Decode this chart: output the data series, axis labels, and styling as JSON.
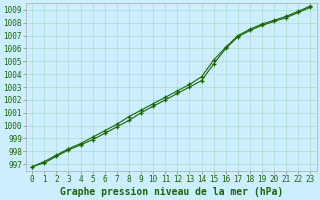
{
  "title": "Graphe pression niveau de la mer (hPa)",
  "x_labels": [
    0,
    1,
    2,
    3,
    4,
    5,
    6,
    7,
    8,
    9,
    10,
    11,
    12,
    13,
    14,
    15,
    16,
    17,
    18,
    19,
    20,
    21,
    22,
    23
  ],
  "xlim": [
    -0.5,
    23.5
  ],
  "ylim": [
    996.5,
    1009.5
  ],
  "yticks": [
    997,
    998,
    999,
    1000,
    1001,
    1002,
    1003,
    1004,
    1005,
    1006,
    1007,
    1008,
    1009
  ],
  "background_color": "#cceeff",
  "plot_bg_color": "#cceeff",
  "grid_color": "#aaddcc",
  "line_color": "#1a6600",
  "marker_color": "#1a6600",
  "series1": [
    996.8,
    997.1,
    997.6,
    998.1,
    998.5,
    998.9,
    999.4,
    999.9,
    1000.4,
    1001.0,
    1001.5,
    1002.0,
    1002.5,
    1003.0,
    1003.5,
    1004.8,
    1006.0,
    1006.9,
    1007.4,
    1007.8,
    1008.1,
    1008.4,
    1008.8,
    1009.2
  ],
  "series2": [
    996.8,
    997.2,
    997.7,
    998.2,
    998.6,
    999.1,
    999.6,
    1000.1,
    1000.7,
    1001.2,
    1001.7,
    1002.2,
    1002.7,
    1003.2,
    1003.8,
    1005.1,
    1006.1,
    1007.0,
    1007.5,
    1007.9,
    1008.2,
    1008.5,
    1008.9,
    1009.3
  ],
  "title_color": "#1a6600",
  "title_fontsize": 7,
  "tick_fontsize": 5.5,
  "tick_color": "#1a6600",
  "figsize": [
    3.2,
    2.0
  ],
  "dpi": 100
}
